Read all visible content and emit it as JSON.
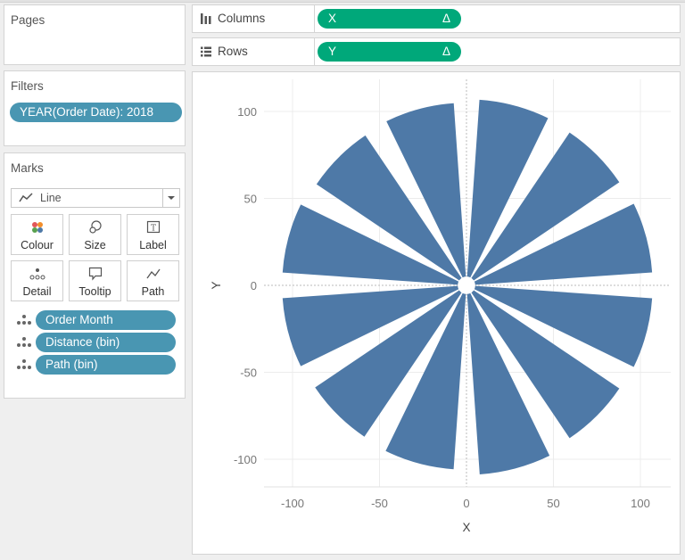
{
  "pages": {
    "title": "Pages"
  },
  "filters": {
    "title": "Filters",
    "pill": "YEAR(Order Date): 2018"
  },
  "marks": {
    "title": "Marks",
    "mark_type": "Line",
    "buttons": [
      {
        "label": "Colour",
        "icon": "colour-icon"
      },
      {
        "label": "Size",
        "icon": "size-icon"
      },
      {
        "label": "Label",
        "icon": "label-icon"
      },
      {
        "label": "Detail",
        "icon": "detail-icon"
      },
      {
        "label": "Tooltip",
        "icon": "tooltip-icon"
      },
      {
        "label": "Path",
        "icon": "path-icon"
      }
    ],
    "fields": [
      {
        "label": "Order Month",
        "icon": "detail-icon"
      },
      {
        "label": "Distance (bin)",
        "icon": "detail-icon"
      },
      {
        "label": "Path (bin)",
        "icon": "detail-icon"
      }
    ]
  },
  "shelves": {
    "columns": {
      "label": "Columns",
      "pill": "X",
      "pill_suffix": "Δ",
      "icon": "columns-icon"
    },
    "rows": {
      "label": "Rows",
      "pill": "Y",
      "pill_suffix": "Δ",
      "icon": "rows-icon"
    }
  },
  "colors": {
    "pill_blue": "#4996b2",
    "pill_green": "#00a87a",
    "mark": "#4e79a7"
  },
  "chart_data": {
    "type": "area",
    "xlabel": "X",
    "ylabel": "Y",
    "xlim": [
      -116,
      116
    ],
    "ylim": [
      -116,
      116
    ],
    "xticks": [
      -100,
      -50,
      0,
      50,
      100
    ],
    "yticks": [
      100,
      50,
      0,
      -50,
      -100
    ],
    "grid": true,
    "segments": {
      "count": 12,
      "inner_radius": 5,
      "outer_radii": [
        107,
        106,
        107,
        107,
        106,
        109,
        106,
        105,
        106,
        106,
        104,
        105
      ]
    }
  }
}
